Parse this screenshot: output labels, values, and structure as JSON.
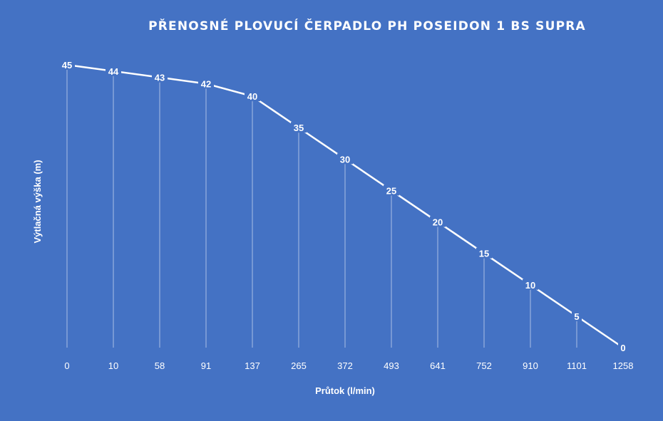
{
  "chart_data": {
    "type": "line",
    "title": "PŘENOSNÉ PLOVUCÍ ČERPADLO PH POSEIDON 1 BS SUPRA",
    "xlabel": "Průtok (l/min)",
    "ylabel": "Výtlačná výška (m)",
    "categories": [
      "0",
      "10",
      "58",
      "91",
      "137",
      "265",
      "372",
      "493",
      "641",
      "752",
      "910",
      "1101",
      "1258"
    ],
    "series": [
      {
        "values": [
          45,
          44,
          43,
          42,
          40,
          35,
          30,
          25,
          20,
          15,
          10,
          5,
          0
        ]
      }
    ],
    "ylim": [
      0,
      45
    ],
    "grid": "drop lines",
    "legend": "none",
    "colors": {
      "background": "#4472c4",
      "line": "#ffffff"
    }
  }
}
